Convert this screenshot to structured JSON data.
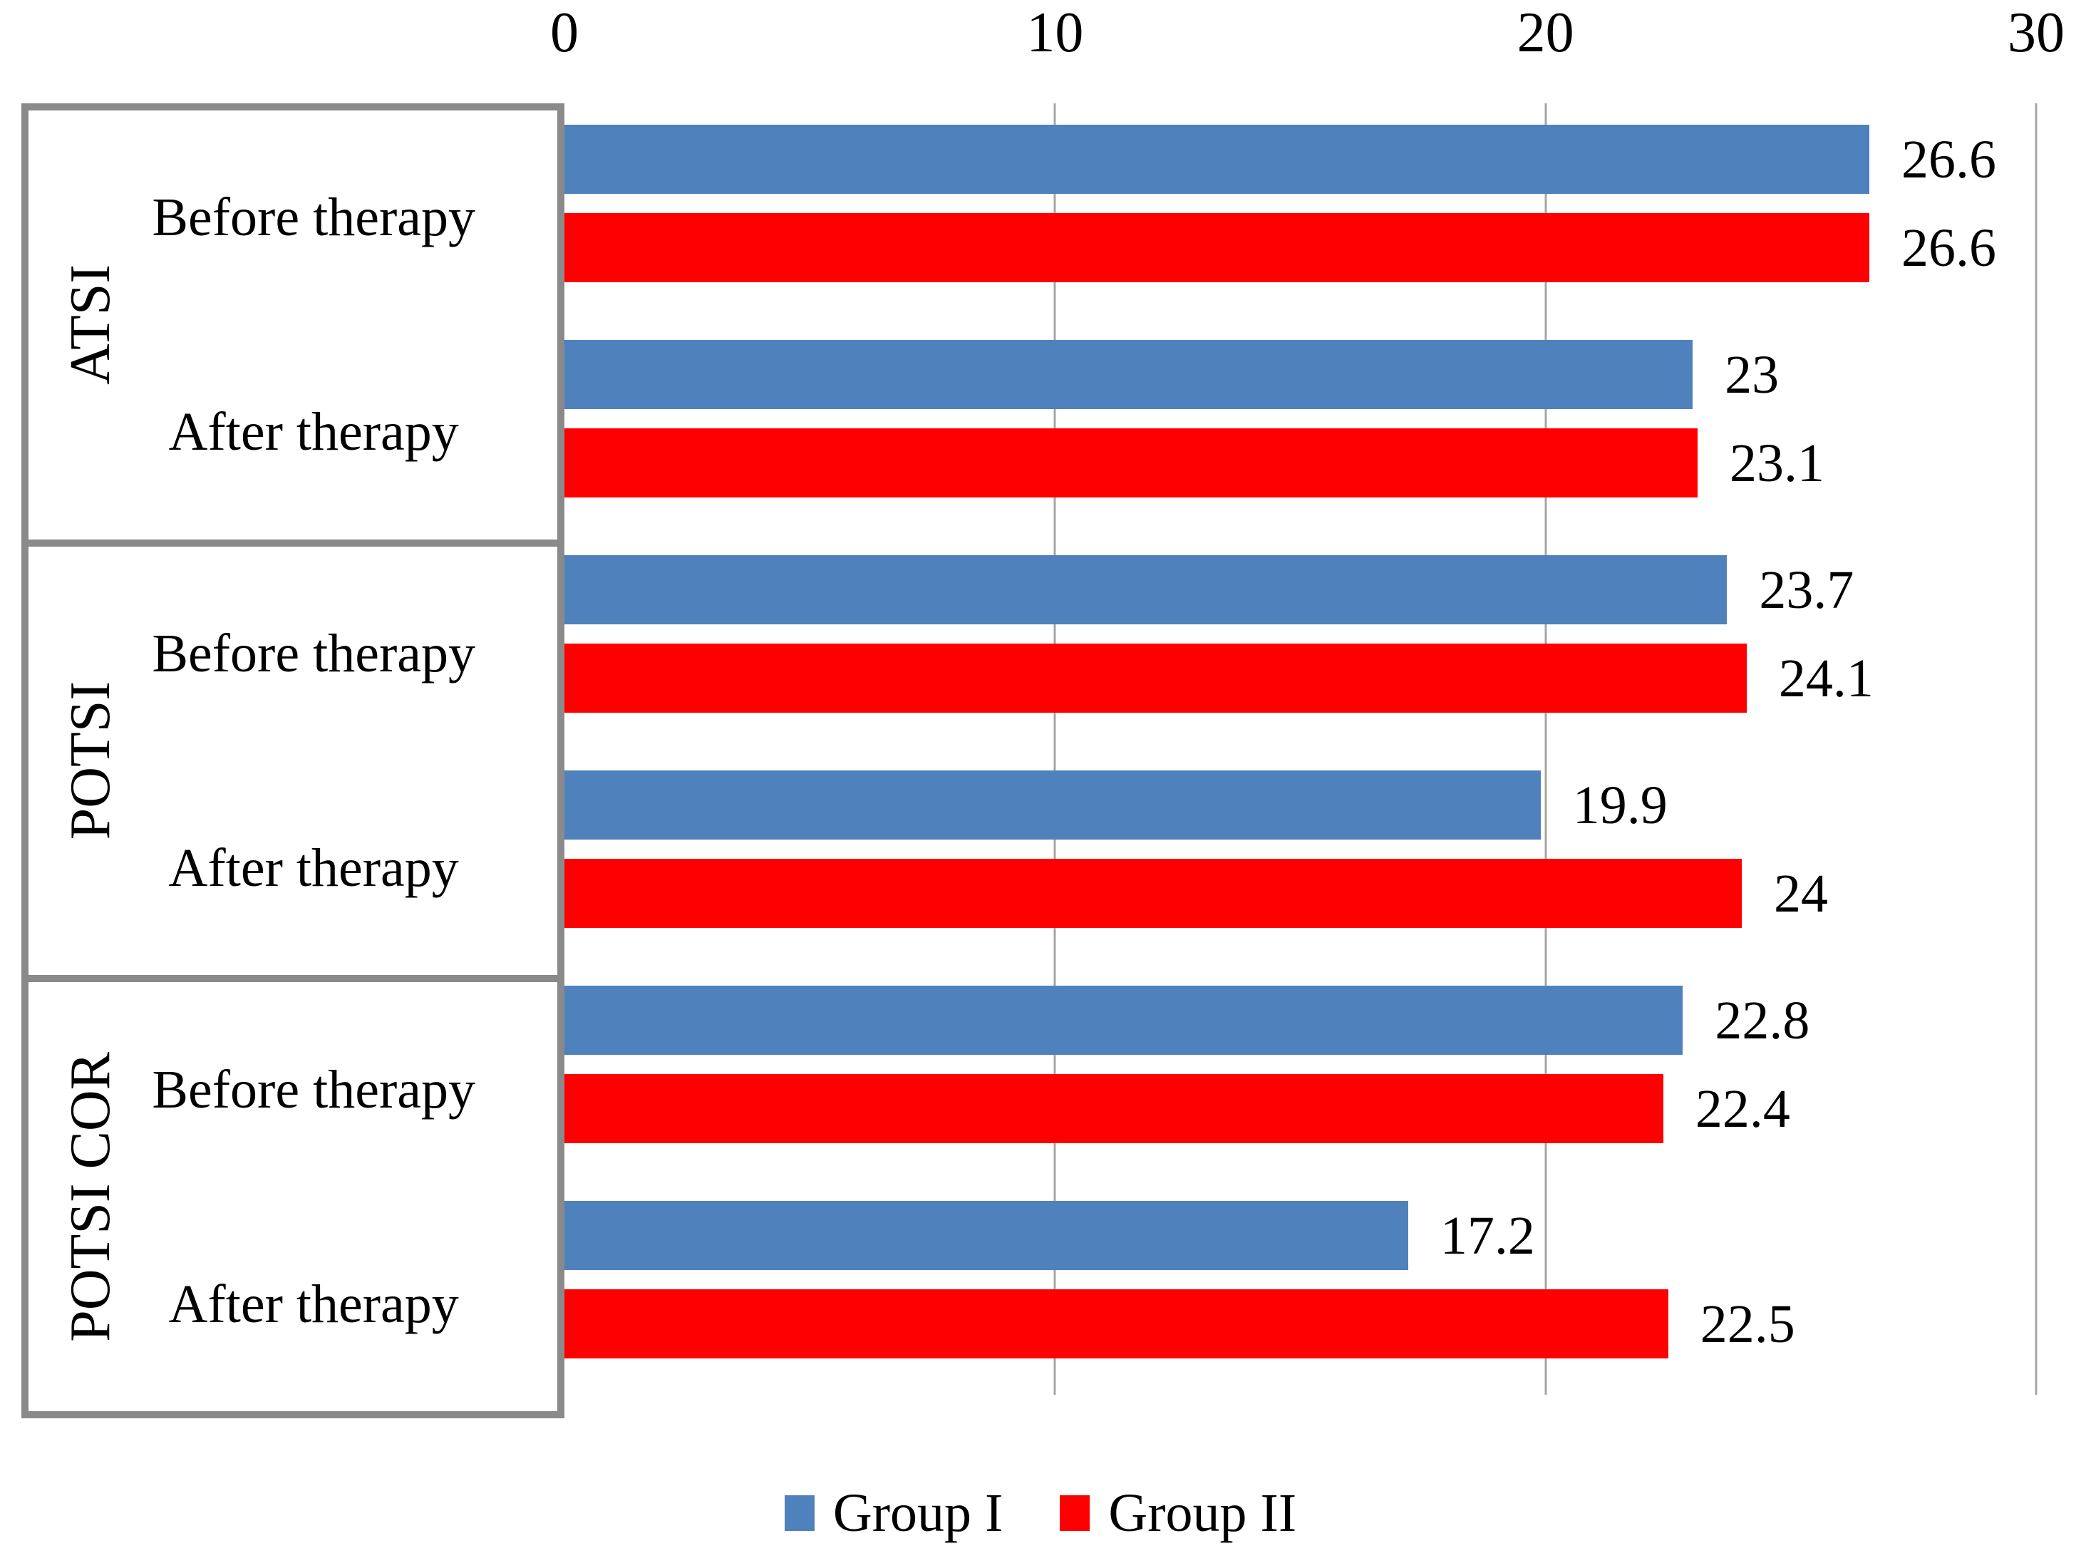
{
  "chart_data": {
    "type": "bar",
    "orientation": "horizontal",
    "title": "",
    "x_axis": {
      "position": "top",
      "ticks": [
        "0",
        "10",
        "20",
        "30"
      ],
      "tick_values": [
        0,
        10,
        20,
        30
      ],
      "range": [
        0,
        30
      ],
      "gridline_values": [
        10,
        20,
        30
      ]
    },
    "series": [
      {
        "name": "Group I",
        "color": "#4F81BD"
      },
      {
        "name": "Group II",
        "color": "#FF0000"
      }
    ],
    "sections": [
      {
        "name": "ATSI",
        "rows": [
          {
            "category": "Before therapy",
            "values": [
              26.6,
              26.6
            ],
            "labels": [
              "26.6",
              "26.6"
            ]
          },
          {
            "category": "After therapy",
            "values": [
              23,
              23.1
            ],
            "labels": [
              "23",
              "23.1"
            ]
          }
        ]
      },
      {
        "name": "POTSI",
        "rows": [
          {
            "category": "Before therapy",
            "values": [
              23.7,
              24.1
            ],
            "labels": [
              "23.7",
              "24.1"
            ]
          },
          {
            "category": "After therapy",
            "values": [
              19.9,
              24
            ],
            "labels": [
              "19.9",
              "24"
            ]
          }
        ]
      },
      {
        "name": "POTSI COR",
        "rows": [
          {
            "category": "Before therapy",
            "values": [
              22.8,
              22.4
            ],
            "labels": [
              "22.8",
              "22.4"
            ]
          },
          {
            "category": "After therapy",
            "values": [
              17.2,
              22.5
            ],
            "labels": [
              "17.2",
              "22.5"
            ]
          }
        ]
      }
    ],
    "legend_position": "bottom",
    "colors": {
      "grid": "#A6A6A6",
      "box_border": "#8A8A8A",
      "text": "#000000",
      "background": "#FFFFFF"
    }
  }
}
